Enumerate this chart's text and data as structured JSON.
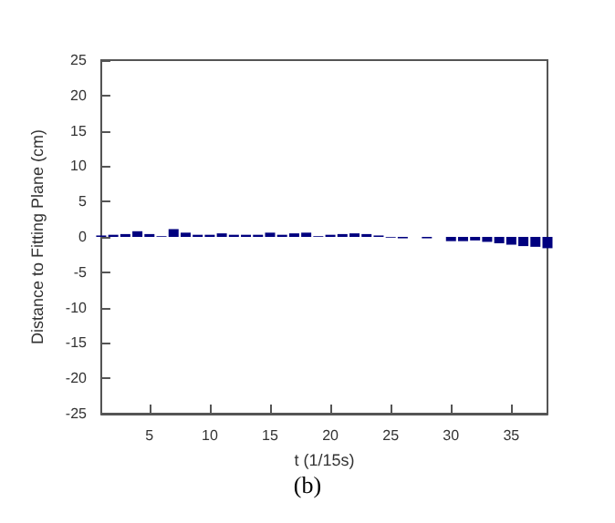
{
  "chart_data": {
    "type": "bar",
    "xlabel": "t (1/15s)",
    "ylabel": "Distance to Fitting Plane (cm)",
    "x": [
      1,
      2,
      3,
      4,
      5,
      6,
      7,
      8,
      9,
      10,
      11,
      12,
      13,
      14,
      15,
      16,
      17,
      18,
      19,
      20,
      21,
      22,
      23,
      24,
      25,
      26,
      27,
      28,
      29,
      30,
      31,
      32,
      33,
      34,
      35,
      36,
      37,
      38
    ],
    "values": [
      0.2,
      0.3,
      0.4,
      0.8,
      0.4,
      0.1,
      1.1,
      0.6,
      0.3,
      0.3,
      0.5,
      0.3,
      0.3,
      0.3,
      0.6,
      0.3,
      0.5,
      0.6,
      0.1,
      0.3,
      0.4,
      0.5,
      0.4,
      0.2,
      -0.1,
      -0.2,
      0,
      -0.2,
      0,
      -0.6,
      -0.6,
      -0.5,
      -0.7,
      -0.9,
      -1.1,
      -1.3,
      -1.4,
      -1.6
    ],
    "color": "#00007f",
    "xlim": [
      1,
      38
    ],
    "xticks": [
      5,
      10,
      15,
      20,
      25,
      30,
      35
    ],
    "ylim": [
      -25,
      25
    ],
    "yticks": [
      -25,
      -20,
      -15,
      -10,
      -5,
      0,
      5,
      10,
      15,
      20,
      25
    ],
    "grid": false,
    "annotations": [
      "(b)"
    ]
  }
}
